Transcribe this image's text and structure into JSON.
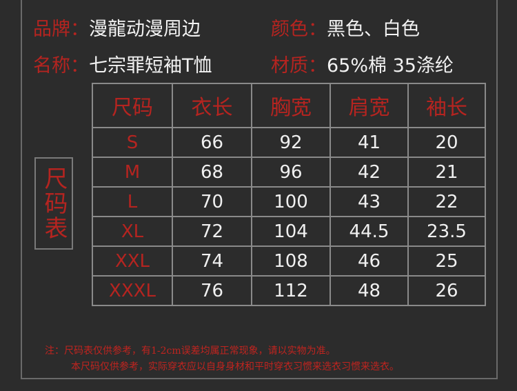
{
  "info": [
    {
      "label": "品牌：",
      "value": "漫龍动漫周边"
    },
    {
      "label": "颜色：",
      "value": "黑色、白色"
    },
    {
      "label": "名称：",
      "value": "七宗罪短袖T恤"
    },
    {
      "label": "材质：",
      "value": "65%棉 35涤纶"
    }
  ],
  "side_label": "尺码表",
  "table": {
    "header": [
      "尺码",
      "衣长",
      "胸宽",
      "肩宽",
      "袖长"
    ],
    "rows": [
      [
        "S",
        "66",
        "92",
        "41",
        "20"
      ],
      [
        "M",
        "68",
        "96",
        "42",
        "21"
      ],
      [
        "L",
        "70",
        "100",
        "43",
        "22"
      ],
      [
        "XL",
        "72",
        "104",
        "44.5",
        "23.5"
      ],
      [
        "XXL",
        "74",
        "108",
        "46",
        "25"
      ],
      [
        "XXXL",
        "76",
        "112",
        "48",
        "26"
      ]
    ]
  },
  "notes": [
    "注：尺码表仅供参考，有1-2cm误差均属正常现象，请以实物为准。",
    "本尺码仅供参考，实际穿衣应以自身身材和平时穿衣习惯来选衣习惯来选衣。"
  ]
}
